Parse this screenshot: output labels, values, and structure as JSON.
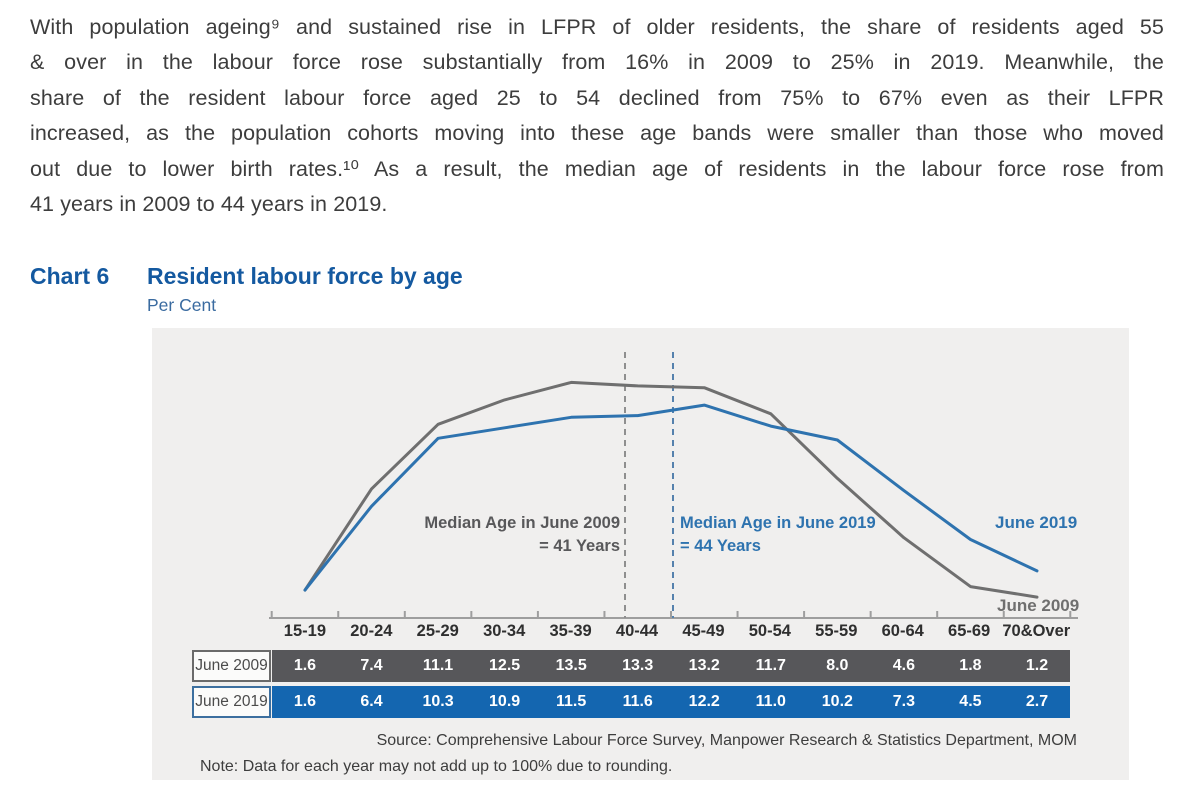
{
  "page": {
    "paragraph_lines": [
      "With population ageing⁹ and sustained rise in LFPR of older residents, the share of residents aged 55",
      "& over in the labour force rose substantially from 16% in 2009 to 25% in 2019.  Meanwhile, the",
      "share of the resident labour force aged 25 to 54 declined from 75% to 67% even as their LFPR",
      "increased, as the population cohorts moving into these age bands were smaller than those who moved",
      "out due to lower birth rates.¹⁰  As a result, the median age of residents in the labour force rose from",
      "41 years in 2009 to 44 years in 2019."
    ],
    "heading": {
      "chart_label": "Chart 6",
      "title": "Resident labour force by age",
      "unit": "Per Cent"
    },
    "source": "Source: Comprehensive Labour Force Survey, Manpower Research & Statistics Department, MOM",
    "note": "Note:  Data for each year may not add up to 100% due to rounding."
  },
  "chart_data": {
    "type": "line",
    "title": "Resident labour force by age",
    "xlabel": "Age group",
    "ylabel": "Per Cent",
    "ylim": [
      0,
      16
    ],
    "grid": false,
    "legend_position": "inline line-end labels",
    "categories": [
      "15-19",
      "20-24",
      "25-29",
      "30-34",
      "35-39",
      "40-44",
      "45-49",
      "50-54",
      "55-59",
      "60-64",
      "65-69",
      "70&Over"
    ],
    "series": [
      {
        "name": "June 2009",
        "color": "#6f6f6f",
        "row_bg": "#57575a",
        "label_border": "#6a6a6a",
        "values": [
          1.6,
          7.4,
          11.1,
          12.5,
          13.5,
          13.3,
          13.2,
          11.7,
          8.0,
          4.6,
          1.8,
          1.2
        ]
      },
      {
        "name": "June 2019",
        "color": "#2e73af",
        "row_bg": "#1466b0",
        "label_border": "#3c6f9f",
        "values": [
          1.6,
          6.4,
          10.3,
          10.9,
          11.5,
          11.6,
          12.2,
          11.0,
          10.2,
          7.3,
          4.5,
          2.7
        ]
      }
    ],
    "annotations": [
      {
        "text_line1": "Median Age in June 2009",
        "text_line2": "= 41 Years",
        "median_age": 41,
        "color": "#58585a",
        "dash_color": "#8f8f8f"
      },
      {
        "text_line1": "Median Age in June 2019",
        "text_line2": "= 44 Years",
        "median_age": 44,
        "color": "#2e73af",
        "dash_color": "#5581ad"
      }
    ],
    "line_end_labels": [
      "June 2019",
      "June 2009"
    ]
  }
}
